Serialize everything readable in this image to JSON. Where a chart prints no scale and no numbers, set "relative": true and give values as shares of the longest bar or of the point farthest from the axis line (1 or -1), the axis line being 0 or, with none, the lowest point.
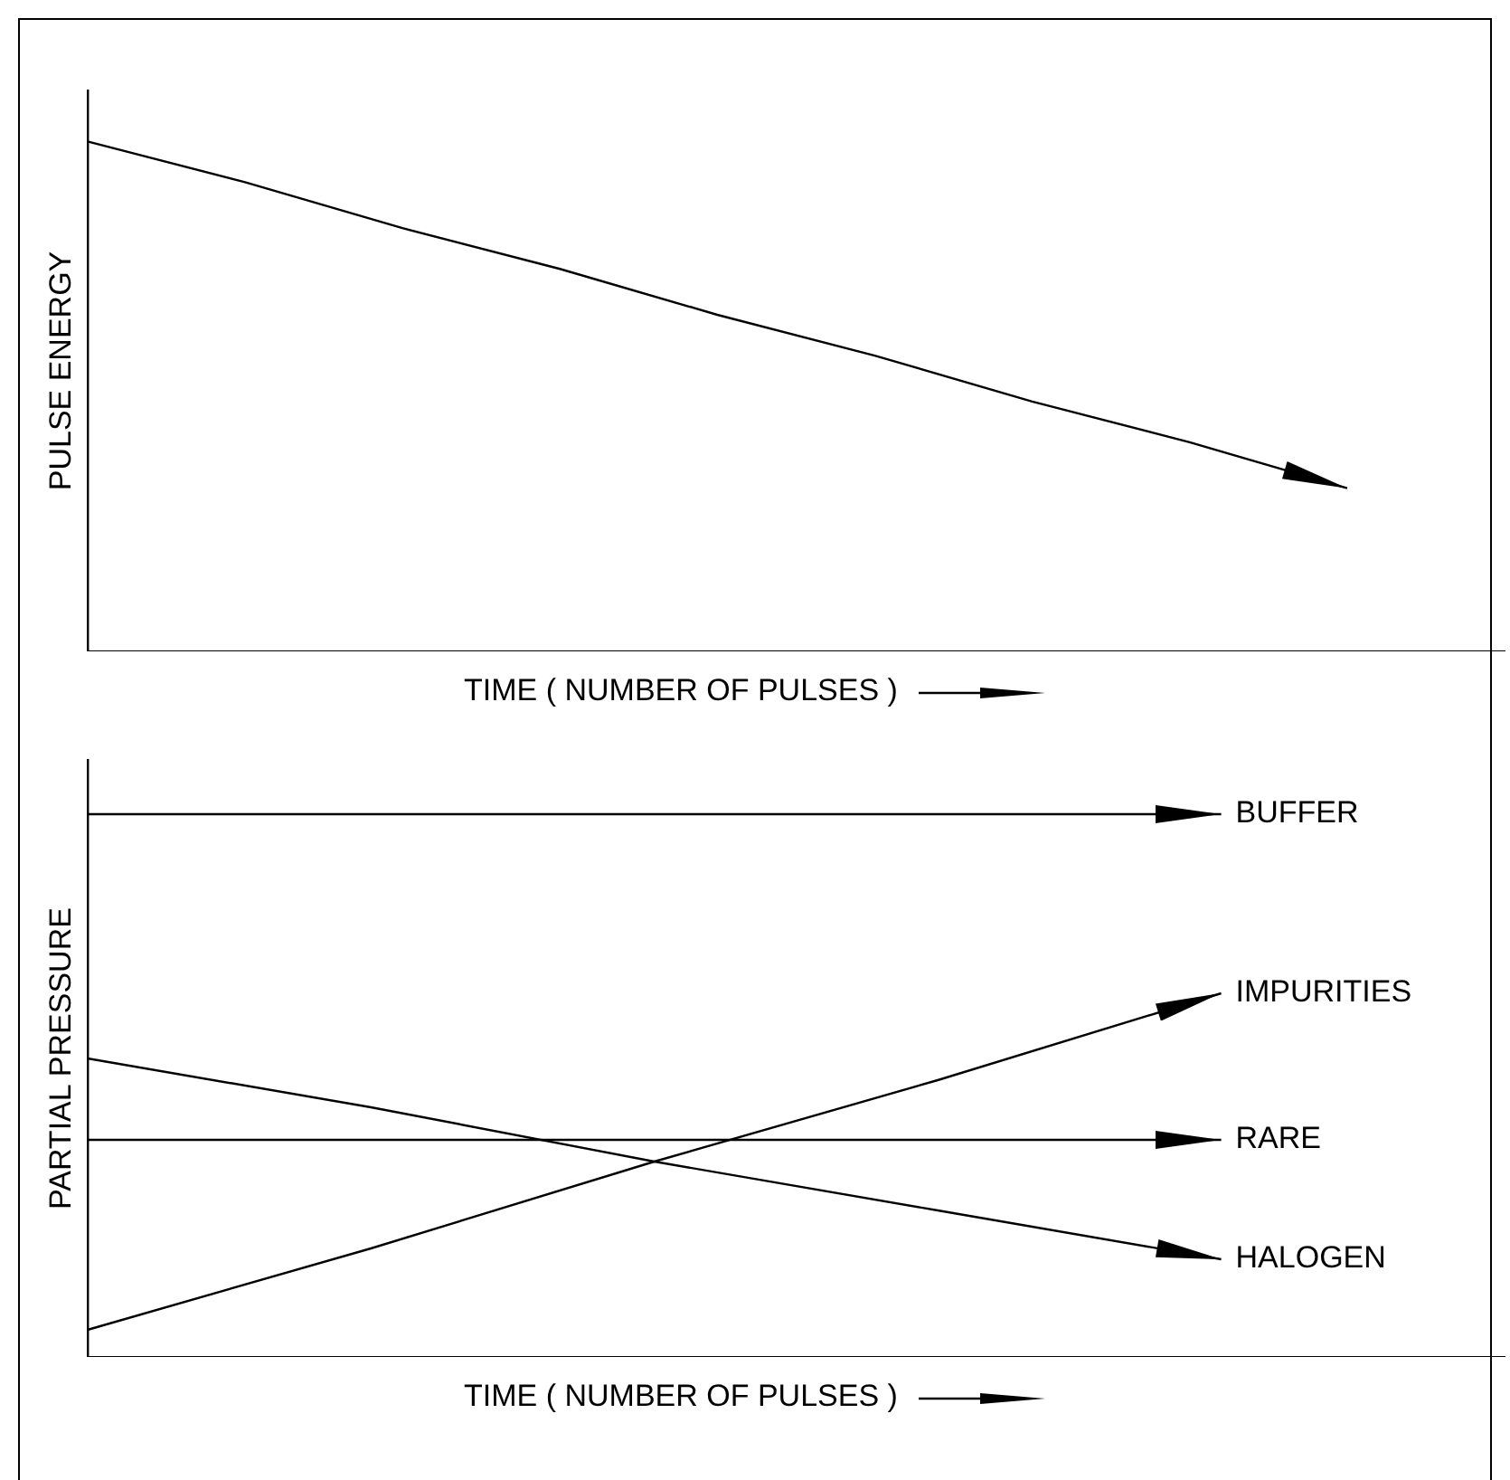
{
  "chart_data": [
    {
      "type": "line",
      "relative": true,
      "ylabel": "PULSE ENERGY",
      "xlabel": "TIME ( NUMBER OF PULSES )",
      "tick_labels": false,
      "marker": "none",
      "categories": [
        null,
        null,
        null,
        null,
        null,
        null,
        null,
        null,
        null,
        null
      ],
      "series": [
        {
          "color": "#000000",
          "values": [
            1,
            0.92,
            0.83,
            0.75,
            0.66,
            0.58,
            0.49,
            0.41,
            0.32,
            null
          ]
        }
      ]
    },
    {
      "type": "line",
      "relative": true,
      "legend": "right",
      "ylabel": "PARTIAL PRESSURE",
      "xlabel": "TIME ( NUMBER OF PULSES )",
      "tick_labels": false,
      "marker": "none",
      "categories": [
        null,
        null,
        null,
        null,
        null,
        null
      ],
      "series": [
        {
          "name": "BUFFER",
          "color": "#000000",
          "values": [
            1,
            1,
            1,
            1,
            1,
            null
          ]
        },
        {
          "name": "IMPURITIES",
          "color": "#000000",
          "values": [
            0.05,
            0.2,
            0.36,
            0.51,
            0.67,
            null
          ]
        },
        {
          "name": "RARE",
          "color": "#000000",
          "values": [
            0.4,
            0.4,
            0.4,
            0.4,
            0.4,
            null
          ]
        },
        {
          "name": "HALOGEN",
          "color": "#000000",
          "values": [
            0.55,
            0.46,
            0.36,
            0.27,
            0.18,
            null
          ]
        }
      ]
    }
  ]
}
